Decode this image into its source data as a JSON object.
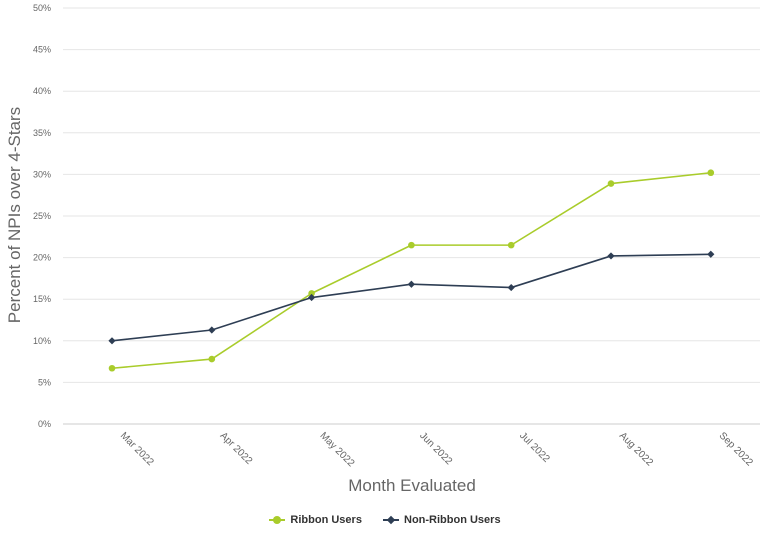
{
  "chart_data": {
    "type": "line",
    "xlabel": "Month Evaluated",
    "ylabel": "Percent of NPIs over 4-Stars",
    "categories": [
      "Mar 2022",
      "Apr 2022",
      "May 2022",
      "Jun 2022",
      "Jul 2022",
      "Aug 2022",
      "Sep 2022"
    ],
    "y_ticks": [
      "0%",
      "5%",
      "10%",
      "15%",
      "20%",
      "25%",
      "30%",
      "35%",
      "40%",
      "45%",
      "50%"
    ],
    "ylim": [
      0,
      50
    ],
    "grid": true,
    "legend_position": "bottom-center",
    "series": [
      {
        "name": "Ribbon Users",
        "color": "#a9cc2b",
        "marker": "circle",
        "values": [
          6.7,
          7.8,
          15.7,
          21.5,
          21.5,
          28.9,
          30.2
        ]
      },
      {
        "name": "Non-Ribbon Users",
        "color": "#2e3e54",
        "marker": "diamond",
        "values": [
          10.0,
          11.3,
          15.2,
          16.8,
          16.4,
          20.2,
          20.4
        ]
      }
    ]
  }
}
